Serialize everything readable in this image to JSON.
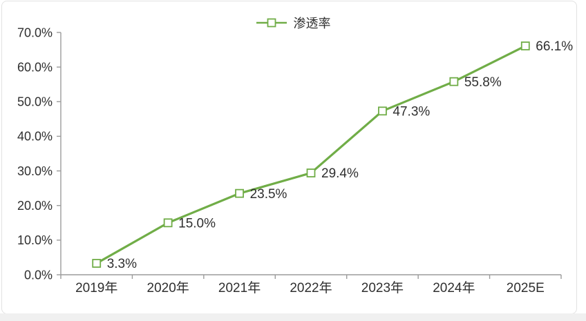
{
  "chart_data": {
    "type": "line",
    "title": "",
    "categories": [
      "2019年",
      "2020年",
      "2021年",
      "2022年",
      "2023年",
      "2024年",
      "2025E"
    ],
    "series": [
      {
        "name": "渗透率",
        "values": [
          3.3,
          15.0,
          23.5,
          29.4,
          47.3,
          55.8,
          66.1
        ],
        "labels": [
          "3.3%",
          "15.0%",
          "23.5%",
          "29.4%",
          "47.3%",
          "55.8%",
          "66.1%"
        ]
      }
    ],
    "xlabel": "",
    "ylabel": "",
    "ylim": [
      0,
      70
    ],
    "y_tick_labels": [
      "0.0%",
      "10.0%",
      "20.0%",
      "30.0%",
      "40.0%",
      "50.0%",
      "60.0%",
      "70.0%"
    ],
    "grid": false,
    "legend_position": "top-center",
    "marker": "hollow-square",
    "colors": {
      "line": "#70AD47",
      "marker_fill": "#ffffff",
      "axis": "#9b9b9b",
      "text": "#2f2f2f"
    }
  }
}
